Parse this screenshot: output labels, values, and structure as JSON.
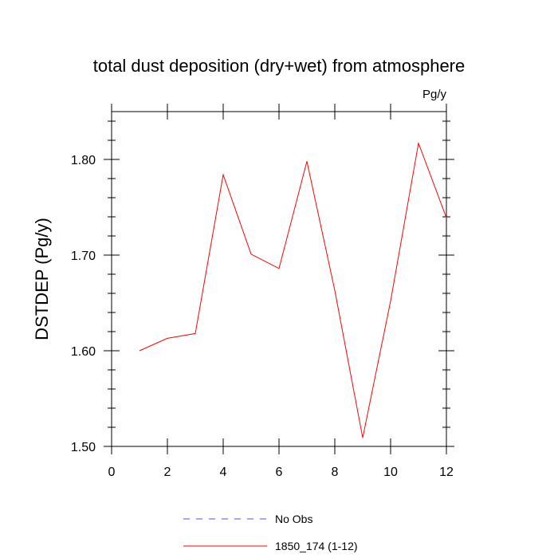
{
  "chart_data": {
    "type": "line",
    "title": "total dust deposition (dry+wet) from atmosphere",
    "units_label": "Pg/y",
    "xlabel": "",
    "ylabel": "DSTDEP  (Pg/y)",
    "xlim": [
      0,
      12
    ],
    "ylim": [
      1.5,
      1.85
    ],
    "x_ticks": [
      0,
      2,
      4,
      6,
      8,
      10,
      12
    ],
    "x_tick_labels": [
      "0",
      "2",
      "4",
      "6",
      "8",
      "10",
      "12"
    ],
    "y_ticks": [
      1.5,
      1.6,
      1.7,
      1.8
    ],
    "y_tick_labels": [
      "1.50",
      "1.60",
      "1.70",
      "1.80"
    ],
    "grid": false,
    "legend_position": "bottom",
    "series": [
      {
        "name": "No Obs",
        "color": "#0000ff",
        "dashed": true,
        "x": [],
        "values": []
      },
      {
        "name": "1850_174 (1-12)",
        "color": "#ff0000",
        "dashed": false,
        "x": [
          1,
          2,
          3,
          4,
          5,
          6,
          7,
          8,
          9,
          10,
          11,
          12
        ],
        "values": [
          1.6,
          1.613,
          1.618,
          1.784,
          1.701,
          1.686,
          1.798,
          1.663,
          1.509,
          1.652,
          1.817,
          1.739
        ]
      }
    ]
  }
}
